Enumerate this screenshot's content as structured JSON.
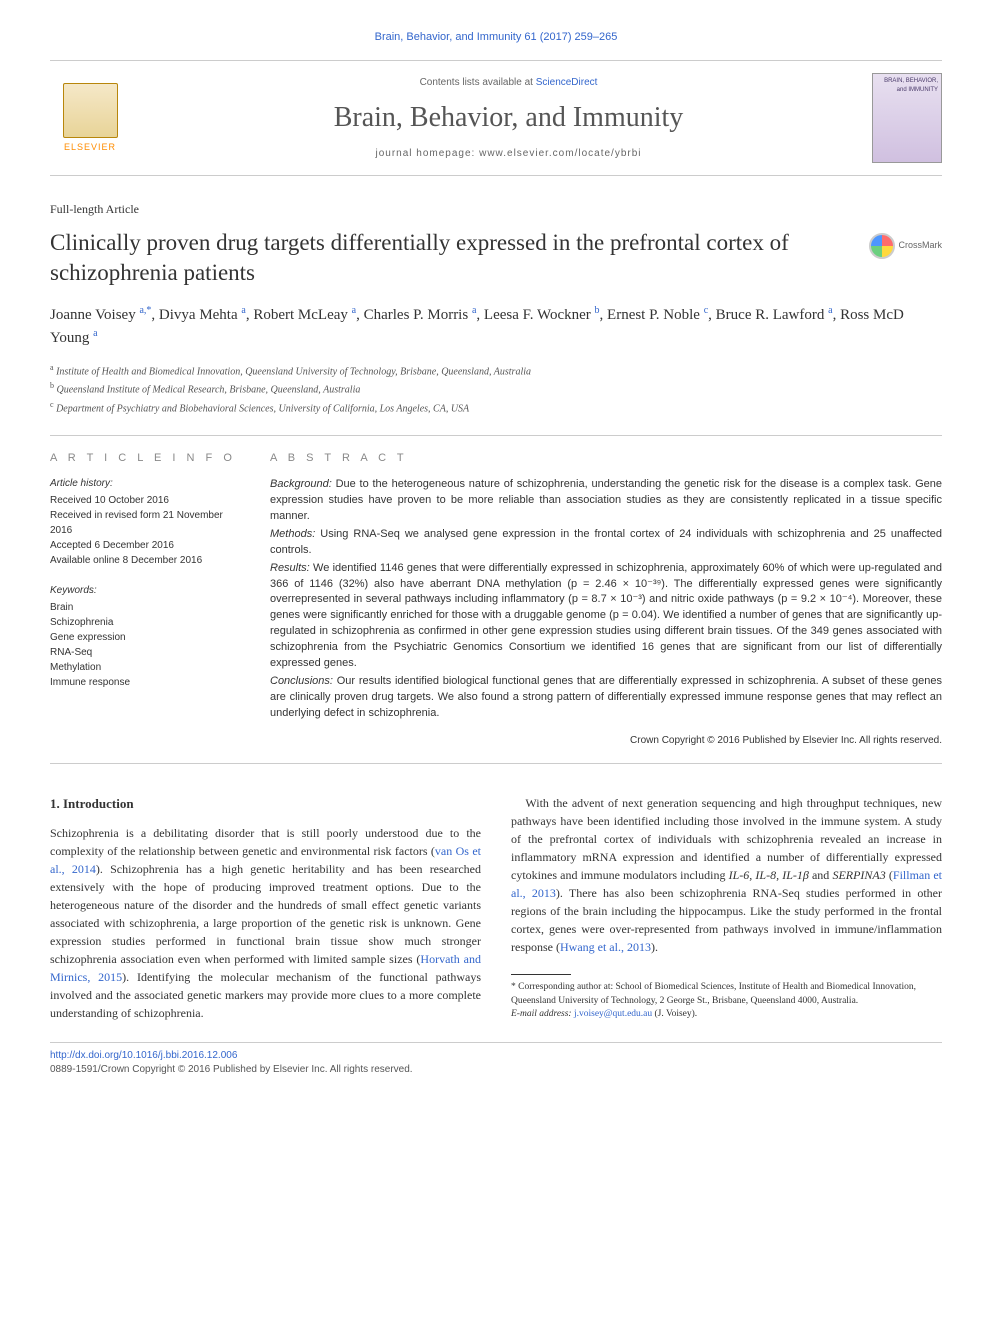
{
  "journal_ref": "Brain, Behavior, and Immunity 61 (2017) 259–265",
  "masthead": {
    "contents_prefix": "Contents lists available at ",
    "contents_link": "ScienceDirect",
    "journal_title": "Brain, Behavior, and Immunity",
    "homepage_prefix": "journal homepage: ",
    "homepage_url": "www.elsevier.com/locate/ybrbi",
    "elsevier_label": "ELSEVIER",
    "cover_text": "BRAIN, BEHAVIOR, and IMMUNITY"
  },
  "article": {
    "type": "Full-length Article",
    "title": "Clinically proven drug targets differentially expressed in the prefrontal cortex of schizophrenia patients",
    "crossmark": "CrossMark"
  },
  "authors_html": "Joanne Voisey <sup>a,*</sup>, Divya Mehta <sup>a</sup>, Robert McLeay <sup>a</sup>, Charles P. Morris <sup>a</sup>, Leesa F. Wockner <sup>b</sup>, Ernest P. Noble <sup>c</sup>, Bruce R. Lawford <sup>a</sup>, Ross McD Young <sup>a</sup>",
  "affiliations": [
    {
      "sup": "a",
      "text": "Institute of Health and Biomedical Innovation, Queensland University of Technology, Brisbane, Queensland, Australia"
    },
    {
      "sup": "b",
      "text": "Queensland Institute of Medical Research, Brisbane, Queensland, Australia"
    },
    {
      "sup": "c",
      "text": "Department of Psychiatry and Biobehavioral Sciences, University of California, Los Angeles, CA, USA"
    }
  ],
  "info": {
    "heading_info": "A R T I C L E   I N F O",
    "heading_abstract": "A B S T R A C T",
    "history_label": "Article history:",
    "history": [
      "Received 10 October 2016",
      "Received in revised form 21 November 2016",
      "Accepted 6 December 2016",
      "Available online 8 December 2016"
    ],
    "keywords_label": "Keywords:",
    "keywords": [
      "Brain",
      "Schizophrenia",
      "Gene expression",
      "RNA-Seq",
      "Methylation",
      "Immune response"
    ]
  },
  "abstract": {
    "background_label": "Background:",
    "background": "Due to the heterogeneous nature of schizophrenia, understanding the genetic risk for the disease is a complex task. Gene expression studies have proven to be more reliable than association studies as they are consistently replicated in a tissue specific manner.",
    "methods_label": "Methods:",
    "methods": "Using RNA-Seq we analysed gene expression in the frontal cortex of 24 individuals with schizophrenia and 25 unaffected controls.",
    "results_label": "Results:",
    "results": "We identified 1146 genes that were differentially expressed in schizophrenia, approximately 60% of which were up-regulated and 366 of 1146 (32%) also have aberrant DNA methylation (p = 2.46 × 10⁻³⁹). The differentially expressed genes were significantly overrepresented in several pathways including inflammatory (p = 8.7 × 10⁻³) and nitric oxide pathways (p = 9.2 × 10⁻⁴). Moreover, these genes were significantly enriched for those with a druggable genome (p = 0.04). We identified a number of genes that are significantly up-regulated in schizophrenia as confirmed in other gene expression studies using different brain tissues. Of the 349 genes associated with schizophrenia from the Psychiatric Genomics Consortium we identified 16 genes that are significant from our list of differentially expressed genes.",
    "conclusions_label": "Conclusions:",
    "conclusions": "Our results identified biological functional genes that are differentially expressed in schizophrenia. A subset of these genes are clinically proven drug targets. We also found a strong pattern of differentially expressed immune response genes that may reflect an underlying defect in schizophrenia.",
    "copyright": "Crown Copyright © 2016 Published by Elsevier Inc. All rights reserved."
  },
  "body": {
    "section_number": "1.",
    "section_title": "Introduction",
    "p1a": "Schizophrenia is a debilitating disorder that is still poorly understood due to the complexity of the relationship between genetic and environmental risk factors (",
    "p1_cite1": "van Os et al., 2014",
    "p1b": "). Schizophrenia has a high genetic heritability and has been researched extensively with the hope of producing improved treatment options. Due to the heterogeneous nature of the disorder and the hundreds of small effect genetic variants associated with schizophrenia, a large proportion of the genetic risk is unknown. Gene expression studies performed in functional brain tissue show much stronger schizophrenia association even when performed with limited sample sizes (",
    "p1_cite2": "Horvath and Mirnics, 2015",
    "p1c": "). Identifying the molecular mechanism of the functional pathways involved and the associated genetic markers may provide more clues to a more complete understanding of schizophrenia.",
    "p2a": "With the advent of next generation sequencing and high throughput techniques, new pathways have been identified including those involved in the immune system. A study of the prefrontal cortex of individuals with schizophrenia revealed an increase in inflammatory mRNA expression and identified a number of differentially expressed cytokines and immune modulators including ",
    "p2_genes": "IL-6, IL-8, IL-1β",
    "p2b": " and ",
    "p2_gene2": "SERPINA3",
    "p2c": " (",
    "p2_cite1": "Fillman et al., 2013",
    "p2d": "). There has also been schizophrenia RNA-Seq studies performed in other regions of the brain including the hippocampus. Like the study performed in the frontal cortex, genes were over-represented from pathways involved in immune/inflammation response (",
    "p2_cite2": "Hwang et al., 2013",
    "p2e": ")."
  },
  "footnote": {
    "corr_label": "* Corresponding author at:",
    "corr_text": "School of Biomedical Sciences, Institute of Health and Biomedical Innovation, Queensland University of Technology, 2 George St., Brisbane, Queensland 4000, Australia.",
    "email_label": "E-mail address:",
    "email": "j.voisey@qut.edu.au",
    "email_who": "(J. Voisey)."
  },
  "footer": {
    "doi_prefix": "http://dx.doi.org/",
    "doi": "10.1016/j.bbi.2016.12.006",
    "issn_line": "0889-1591/Crown Copyright © 2016 Published by Elsevier Inc. All rights reserved."
  },
  "colors": {
    "link": "#3366cc",
    "text": "#333333",
    "rule": "#cccccc",
    "elsevier": "#ff8c00"
  }
}
